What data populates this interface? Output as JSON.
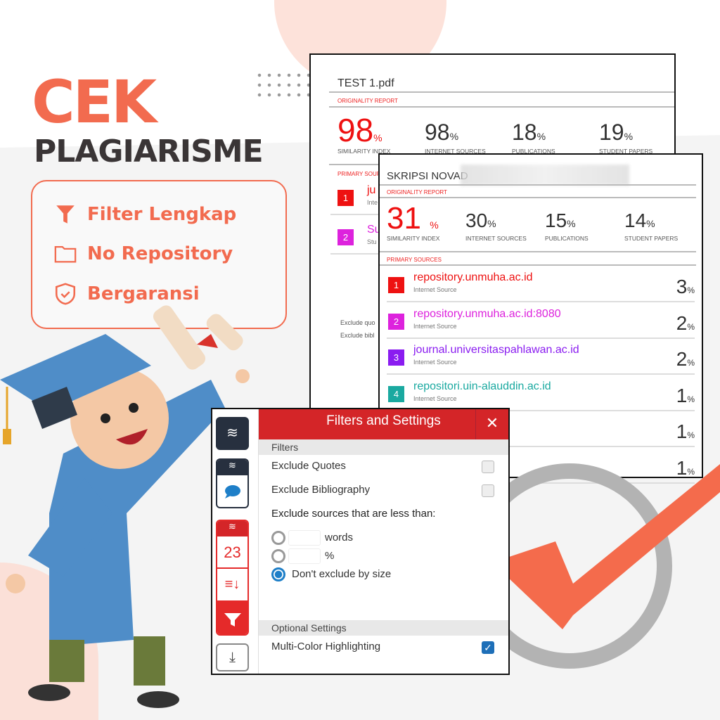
{
  "promo": {
    "title": "CEK",
    "subtitle": "PLAGIARISME",
    "features": [
      {
        "icon": "funnel-icon",
        "label": "Filter Lengkap"
      },
      {
        "icon": "folder-icon",
        "label": "No Repository"
      },
      {
        "icon": "shield-check-icon",
        "label": "Bergaransi"
      }
    ],
    "accent": "#f26b4f"
  },
  "report1": {
    "filename": "TEST 1.pdf",
    "originality_label": "ORIGINALITY REPORT",
    "stats": [
      {
        "value": "98",
        "unit": "%",
        "label": "SIMILARITY INDEX"
      },
      {
        "value": "98",
        "unit": "%",
        "label": "INTERNET SOURCES"
      },
      {
        "value": "18",
        "unit": "%",
        "label": "PUBLICATIONS"
      },
      {
        "value": "19",
        "unit": "%",
        "label": "STUDENT PAPERS"
      }
    ],
    "primary_label": "PRIMARY SOUR",
    "sources": [
      {
        "num": "1",
        "name": "ju",
        "type": "Inte",
        "color": "#ee1111"
      },
      {
        "num": "2",
        "name": "Su",
        "type": "Stu",
        "color": "#dd22dd"
      }
    ],
    "footer": [
      "Exclude quo",
      "Exclude bibl"
    ]
  },
  "report2": {
    "filename": "SKRIPSI NOVAD",
    "originality_label": "ORIGINALITY REPORT",
    "stats": [
      {
        "value": "31",
        "unit": "%",
        "label": "SIMILARITY INDEX"
      },
      {
        "value": "30",
        "unit": "%",
        "label": "INTERNET SOURCES"
      },
      {
        "value": "15",
        "unit": "%",
        "label": "PUBLICATIONS"
      },
      {
        "value": "14",
        "unit": "%",
        "label": "STUDENT PAPERS"
      }
    ],
    "primary_label": "PRIMARY SOURCES",
    "sources": [
      {
        "num": "1",
        "name": "repository.unmuha.ac.id",
        "type": "Internet Source",
        "pct": "3",
        "unit": "%",
        "color": "#ee1111"
      },
      {
        "num": "2",
        "name": "repository.unmuha.ac.id:8080",
        "type": "Internet Source",
        "pct": "2",
        "unit": "%",
        "color": "#dd22dd"
      },
      {
        "num": "3",
        "name": "journal.universitaspahlawan.ac.id",
        "type": "Internet Source",
        "pct": "2",
        "unit": "%",
        "color": "#8a1cf0"
      },
      {
        "num": "4",
        "name": "repositori.uin-alauddin.ac.id",
        "type": "Internet Source",
        "pct": "1",
        "unit": "%",
        "color": "#1aa9a0"
      },
      {
        "pct": "1",
        "unit": "%"
      },
      {
        "pct": "1",
        "unit": "%"
      }
    ]
  },
  "filters": {
    "title": "Filters and Settings",
    "close": "✕",
    "filters_header": "Filters",
    "exclude_quotes": "Exclude Quotes",
    "exclude_quotes_checked": false,
    "exclude_bibliography": "Exclude Bibliography",
    "exclude_bibliography_checked": false,
    "exclude_sources_label": "Exclude sources that are less than:",
    "words_label": "words",
    "percent_label": "%",
    "words_value": "",
    "percent_value": "",
    "no_exclude_label": "Don't exclude by size",
    "selected_option": "Don't exclude by size",
    "optional_header": "Optional Settings",
    "multicolor": "Multi-Color Highlighting",
    "multicolor_checked": true,
    "match_count": "23"
  }
}
